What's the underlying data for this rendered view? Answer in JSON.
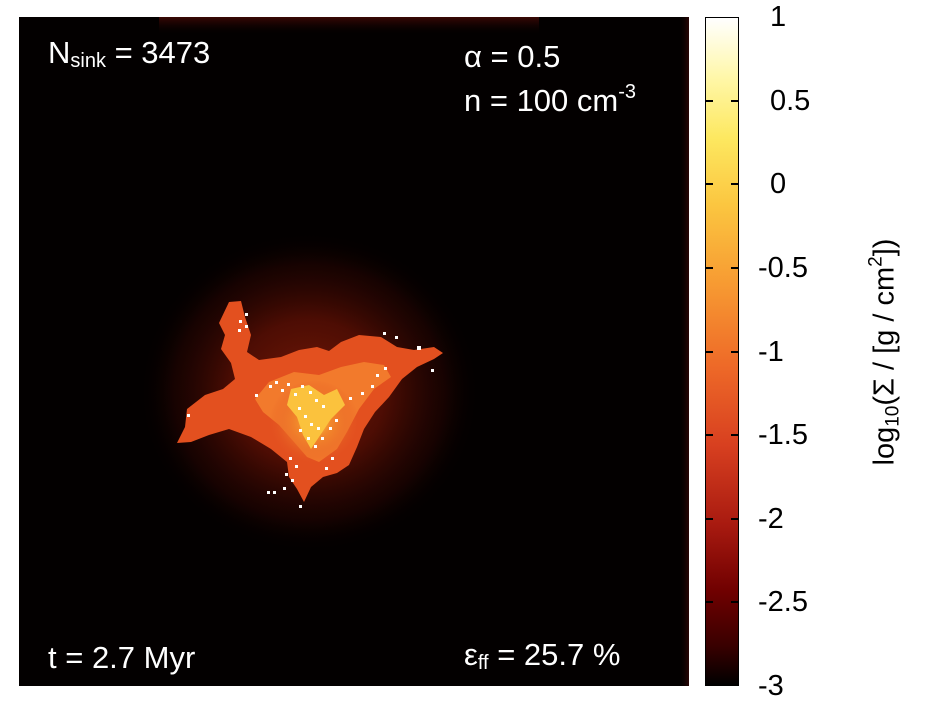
{
  "panel": {
    "nsink": {
      "base": "N",
      "sub": "sink",
      "rest": " = 3473"
    },
    "alpha": "α = 0.5",
    "density": {
      "text": "n = 100 cm",
      "sup": "-3"
    },
    "time": "t = 2.7 Myr",
    "efficiency": {
      "base": "ε",
      "sub": "ff",
      "rest": " = 25.7 %"
    }
  },
  "colorbar": {
    "ticks": [
      "1",
      "0.5",
      "0",
      "-0.5",
      "-1",
      "-1.5",
      "-2",
      "-2.5",
      "-3"
    ],
    "title": {
      "pre": "log",
      "sub": "10",
      "mid": "(Σ / [g / cm",
      "sup": "2",
      "post": "])"
    },
    "range": [
      -3,
      1
    ]
  },
  "colors": {
    "background": "#030000",
    "cloud": "#e85a22",
    "sink": "#ffffff"
  }
}
